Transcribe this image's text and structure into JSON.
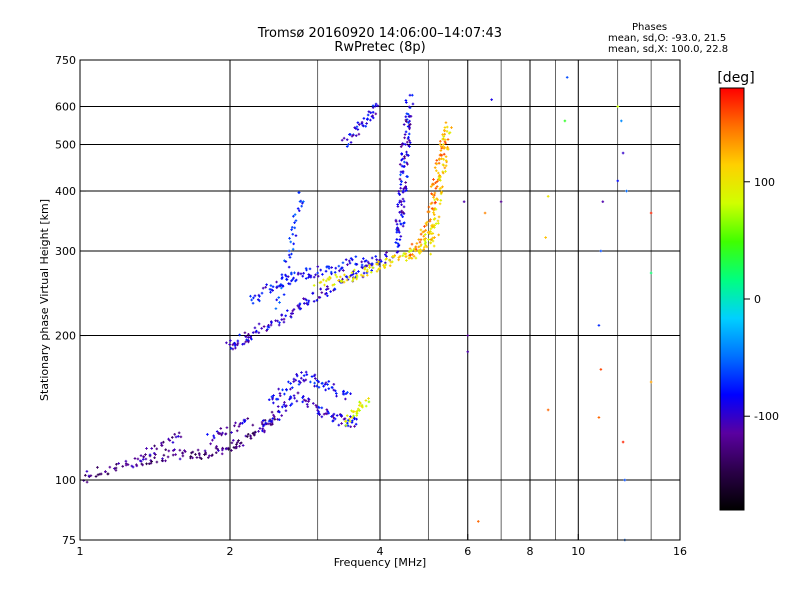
{
  "chart_data": {
    "type": "scatter",
    "title": "Tromsø 20160920 14:06:00–14:07:43",
    "subtitle": "RwPretec (8p)",
    "xlabel": "Frequency [MHz]",
    "ylabel": "Stationary phase Virtual Height [km]",
    "x_scale": "log",
    "y_scale": "log",
    "xlim": [
      1,
      16
    ],
    "ylim": [
      75,
      750
    ],
    "x_ticks": [
      1,
      2,
      4,
      6,
      8,
      10,
      16
    ],
    "y_ticks": [
      75,
      100,
      200,
      300,
      400,
      500,
      600,
      750
    ],
    "grid": true,
    "phase_stats": {
      "heading": "Phases",
      "line1": "mean, sd,O: -93.0, 21.5",
      "line2": "mean, sd,X: 100.0, 22.8"
    },
    "colorbar": {
      "label": "[deg]",
      "ticks": [
        100,
        0,
        -100
      ],
      "range": [
        -180,
        180
      ],
      "colors": [
        "#000000",
        "#2a0048",
        "#5a00a0",
        "#0000ff",
        "#0070ff",
        "#00d0ff",
        "#00ff80",
        "#40ff00",
        "#d0ff00",
        "#ffd000",
        "#ff7000",
        "#ff0000"
      ]
    },
    "traces": [
      {
        "x": [
          1.0,
          1.1,
          1.25,
          1.4,
          1.55,
          1.7,
          1.85,
          2.0,
          2.15,
          2.3,
          2.5
        ],
        "y": [
          100,
          104,
          108,
          111,
          113,
          113,
          114,
          117,
          121,
          128,
          138
        ],
        "phase": -125
      },
      {
        "x": [
          1.3,
          1.45,
          1.6
        ],
        "y": [
          108,
          118,
          125
        ],
        "phase": -115
      },
      {
        "x": [
          1.8,
          2.0,
          2.2
        ],
        "y": [
          122,
          128,
          132
        ],
        "phase": -105
      },
      {
        "x": [
          2.3,
          2.45,
          2.6,
          2.8,
          3.0,
          3.2,
          3.4,
          3.6
        ],
        "y": [
          128,
          135,
          145,
          150,
          140,
          135,
          133,
          132
        ],
        "phase": -95
      },
      {
        "x": [
          2.4,
          2.6,
          2.8,
          3.0,
          3.2,
          3.5
        ],
        "y": [
          145,
          155,
          165,
          160,
          155,
          148
        ],
        "phase": -85
      },
      {
        "x": [
          2.0,
          2.1,
          2.2,
          2.4,
          2.6,
          2.8,
          3.0,
          3.3,
          3.6,
          3.9,
          4.2
        ],
        "y": [
          190,
          196,
          200,
          210,
          220,
          232,
          245,
          255,
          268,
          282,
          295
        ],
        "phase": -95
      },
      {
        "x": [
          2.2,
          2.4,
          2.6,
          2.8,
          3.0,
          3.3,
          3.6,
          3.9
        ],
        "y": [
          235,
          250,
          262,
          268,
          272,
          278,
          285,
          290
        ],
        "phase": -85
      },
      {
        "x": [
          4.3,
          4.4,
          4.45,
          4.5,
          4.55,
          4.6
        ],
        "y": [
          300,
          340,
          400,
          470,
          550,
          630
        ],
        "phase": -80
      },
      {
        "x": [
          4.35,
          4.4,
          4.45,
          4.5,
          4.55
        ],
        "y": [
          320,
          370,
          430,
          500,
          580
        ],
        "phase": -105
      },
      {
        "x": [
          2.5,
          2.6,
          2.7,
          2.8
        ],
        "y": [
          230,
          280,
          340,
          400
        ],
        "phase": -70
      },
      {
        "x": [
          3.4,
          3.6,
          3.8,
          4.0
        ],
        "y": [
          500,
          540,
          570,
          600
        ],
        "phase": -90
      },
      {
        "x": [
          3.0,
          3.3,
          3.6,
          3.9,
          4.2,
          4.5,
          4.8,
          5.0,
          5.2
        ],
        "y": [
          255,
          262,
          268,
          276,
          285,
          292,
          300,
          320,
          350
        ],
        "phase": 100
      },
      {
        "x": [
          4.6,
          4.8,
          5.0,
          5.1,
          5.2,
          5.3,
          5.4
        ],
        "y": [
          295,
          310,
          340,
          380,
          430,
          480,
          530
        ],
        "phase": 140
      },
      {
        "x": [
          5.1,
          5.2,
          5.25,
          5.35,
          5.4,
          5.5
        ],
        "y": [
          300,
          350,
          400,
          450,
          500,
          550
        ],
        "phase": 110
      },
      {
        "x": [
          3.4,
          3.6,
          3.8
        ],
        "y": [
          133,
          140,
          147
        ],
        "phase": 90
      }
    ],
    "sparse_points": [
      {
        "x": 5.9,
        "y": 380,
        "phase": -110
      },
      {
        "x": 6.0,
        "y": 200,
        "phase": -120
      },
      {
        "x": 6.0,
        "y": 185,
        "phase": -110
      },
      {
        "x": 6.3,
        "y": 82,
        "phase": 150
      },
      {
        "x": 6.5,
        "y": 360,
        "phase": 140
      },
      {
        "x": 6.7,
        "y": 620,
        "phase": -90
      },
      {
        "x": 7.0,
        "y": 380,
        "phase": -120
      },
      {
        "x": 8.7,
        "y": 390,
        "phase": 100
      },
      {
        "x": 8.6,
        "y": 320,
        "phase": 120
      },
      {
        "x": 8.7,
        "y": 140,
        "phase": 150
      },
      {
        "x": 9.5,
        "y": 690,
        "phase": -60
      },
      {
        "x": 9.4,
        "y": 560,
        "phase": 40
      },
      {
        "x": 11.2,
        "y": 380,
        "phase": -110
      },
      {
        "x": 11.1,
        "y": 300,
        "phase": -60
      },
      {
        "x": 11.0,
        "y": 210,
        "phase": -70
      },
      {
        "x": 11.1,
        "y": 170,
        "phase": 160
      },
      {
        "x": 11.0,
        "y": 135,
        "phase": 150
      },
      {
        "x": 12.0,
        "y": 600,
        "phase": 80
      },
      {
        "x": 12.0,
        "y": 420,
        "phase": -80
      },
      {
        "x": 12.2,
        "y": 560,
        "phase": -40
      },
      {
        "x": 12.3,
        "y": 480,
        "phase": -100
      },
      {
        "x": 12.3,
        "y": 120,
        "phase": 170
      },
      {
        "x": 12.4,
        "y": 100,
        "phase": -60
      },
      {
        "x": 12.4,
        "y": 75,
        "phase": -50
      },
      {
        "x": 12.5,
        "y": 400,
        "phase": -50
      },
      {
        "x": 14.0,
        "y": 360,
        "phase": 170
      },
      {
        "x": 14.0,
        "y": 270,
        "phase": 20
      },
      {
        "x": 14.0,
        "y": 160,
        "phase": 130
      }
    ]
  }
}
